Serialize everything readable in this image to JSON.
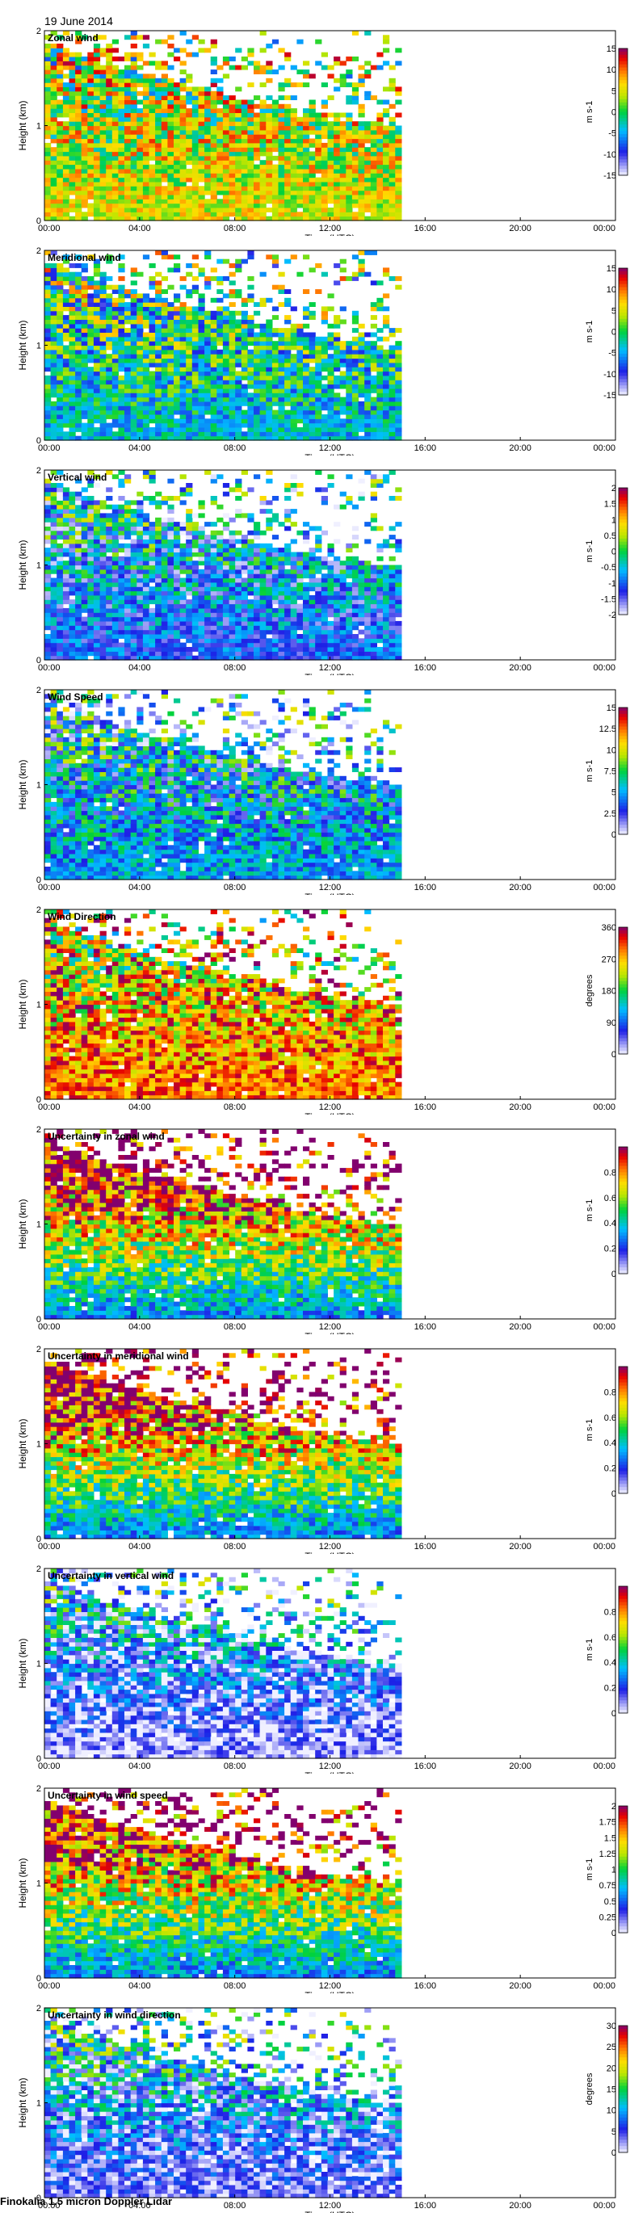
{
  "header": {
    "date": "19 June 2014"
  },
  "footer": {
    "instrument": "Finokalia 1.5 micron Doppler Lidar"
  },
  "chart_data": [
    {
      "type": "heatmap",
      "title": "Zonal wind",
      "xlabel": "Time (UTC)",
      "ylabel": "Height (km)",
      "cbar_label": "m s-1",
      "clim": [
        -15,
        15
      ],
      "cbar_ticks": [
        "15",
        "10",
        "5",
        "0",
        "-5",
        "-10",
        "-15"
      ],
      "xticks": [
        "00:00",
        "04:00",
        "08:00",
        "12:00",
        "16:00",
        "20:00",
        "00:00"
      ],
      "xlim": [
        0,
        24
      ],
      "yticks": [
        "0",
        "1",
        "2"
      ],
      "ylim": [
        0,
        2
      ],
      "data_end_hour": 15,
      "low_level_value": 5,
      "high_level_value": 3,
      "colormap": "jet-like"
    },
    {
      "type": "heatmap",
      "title": "Meridional wind",
      "xlabel": "Time (UTC)",
      "ylabel": "Height (km)",
      "cbar_label": "m s-1",
      "clim": [
        -15,
        15
      ],
      "cbar_ticks": [
        "15",
        "10",
        "5",
        "0",
        "-5",
        "-10",
        "-15"
      ],
      "xticks": [
        "00:00",
        "04:00",
        "08:00",
        "12:00",
        "16:00",
        "20:00",
        "00:00"
      ],
      "xlim": [
        0,
        24
      ],
      "yticks": [
        "0",
        "1",
        "2"
      ],
      "ylim": [
        0,
        2
      ],
      "data_end_hour": 15,
      "low_level_value": -4,
      "high_level_value": 0,
      "colormap": "jet-like"
    },
    {
      "type": "heatmap",
      "title": "Vertical wind",
      "xlabel": "Time (UTC)",
      "ylabel": "Height (km)",
      "cbar_label": "m s-1",
      "clim": [
        -2,
        2
      ],
      "cbar_ticks": [
        "2",
        "1.5",
        "1",
        "0.5",
        "0",
        "-0.5",
        "-1",
        "-1.5",
        "-2"
      ],
      "xticks": [
        "00:00",
        "04:00",
        "08:00",
        "12:00",
        "16:00",
        "20:00",
        "00:00"
      ],
      "xlim": [
        0,
        24
      ],
      "yticks": [
        "0",
        "1",
        "2"
      ],
      "ylim": [
        0,
        2
      ],
      "data_end_hour": 15,
      "low_level_value": -1.1,
      "high_level_value": -0.6,
      "colormap": "jet-like"
    },
    {
      "type": "heatmap",
      "title": "Wind Speed",
      "xlabel": "Time (UTC)",
      "ylabel": "Height (km)",
      "cbar_label": "m s-1",
      "clim": [
        0,
        15
      ],
      "cbar_ticks": [
        "15",
        "12.5",
        "10",
        "7.5",
        "5",
        "2.5",
        "0"
      ],
      "xticks": [
        "00:00",
        "04:00",
        "08:00",
        "12:00",
        "16:00",
        "20:00",
        "00:00"
      ],
      "xlim": [
        0,
        24
      ],
      "yticks": [
        "0",
        "1",
        "2"
      ],
      "ylim": [
        0,
        2
      ],
      "data_end_hour": 15,
      "low_level_value": 5,
      "high_level_value": 5,
      "colormap": "jet-like"
    },
    {
      "type": "heatmap",
      "title": "Wind Direction",
      "xlabel": "Time (UTC)",
      "ylabel": "Height (km)",
      "cbar_label": "degrees",
      "clim": [
        0,
        360
      ],
      "cbar_ticks": [
        "360",
        "270",
        "180",
        "90",
        "0"
      ],
      "xticks": [
        "00:00",
        "04:00",
        "08:00",
        "12:00",
        "16:00",
        "20:00",
        "00:00"
      ],
      "xlim": [
        0,
        24
      ],
      "yticks": [
        "0",
        "1",
        "2"
      ],
      "ylim": [
        0,
        2
      ],
      "data_end_hour": 15,
      "low_level_value": 300,
      "high_level_value": 240,
      "colormap": "jet-like"
    },
    {
      "type": "heatmap",
      "title": "Uncertainty in zonal wind",
      "xlabel": "Time (UTC)",
      "ylabel": "Height (km)",
      "cbar_label": "m s-1",
      "clim": [
        0,
        1
      ],
      "cbar_ticks": [
        "0.8",
        "0.6",
        "0.4",
        "0.2",
        "0"
      ],
      "xticks": [
        "00:00",
        "04:00",
        "08:00",
        "12:00",
        "16:00",
        "20:00",
        "00:00"
      ],
      "xlim": [
        0,
        24
      ],
      "yticks": [
        "0",
        "1",
        "2"
      ],
      "ylim": [
        0,
        2
      ],
      "data_end_hour": 15,
      "low_level_value": 0.3,
      "high_level_value": 1,
      "colormap": "jet-like"
    },
    {
      "type": "heatmap",
      "title": "Uncertainty in meridional wind",
      "xlabel": "Time (UTC)",
      "ylabel": "Height (km)",
      "cbar_label": "m s-1",
      "clim": [
        0,
        1
      ],
      "cbar_ticks": [
        "0.8",
        "0.6",
        "0.4",
        "0.2",
        "0"
      ],
      "xticks": [
        "00:00",
        "04:00",
        "08:00",
        "12:00",
        "16:00",
        "20:00",
        "00:00"
      ],
      "xlim": [
        0,
        24
      ],
      "yticks": [
        "0",
        "1",
        "2"
      ],
      "ylim": [
        0,
        2
      ],
      "data_end_hour": 15,
      "low_level_value": 0.3,
      "high_level_value": 1,
      "colormap": "jet-like"
    },
    {
      "type": "heatmap",
      "title": "Uncertainty in vertical wind",
      "xlabel": "Time (UTC)",
      "ylabel": "Height (km)",
      "cbar_label": "m s-1",
      "clim": [
        0,
        1
      ],
      "cbar_ticks": [
        "0.8",
        "0.6",
        "0.4",
        "0.2",
        "0"
      ],
      "xticks": [
        "00:00",
        "04:00",
        "08:00",
        "12:00",
        "16:00",
        "20:00",
        "00:00"
      ],
      "xlim": [
        0,
        24
      ],
      "yticks": [
        "0",
        "1",
        "2"
      ],
      "ylim": [
        0,
        2
      ],
      "data_end_hour": 15,
      "low_level_value": 0.05,
      "high_level_value": 0.3,
      "colormap": "jet-like"
    },
    {
      "type": "heatmap",
      "title": "Uncertainty in wind speed",
      "xlabel": "Time (UTC)",
      "ylabel": "Height (km)",
      "cbar_label": "m s-1",
      "clim": [
        0,
        2
      ],
      "cbar_ticks": [
        "2",
        "1.75",
        "1.5",
        "1.25",
        "1",
        "0.75",
        "0.5",
        "0.25",
        "0"
      ],
      "xticks": [
        "00:00",
        "04:00",
        "08:00",
        "12:00",
        "16:00",
        "20:00",
        "00:00"
      ],
      "xlim": [
        0,
        24
      ],
      "yticks": [
        "0",
        "1",
        "2"
      ],
      "ylim": [
        0,
        2
      ],
      "data_end_hour": 15,
      "low_level_value": 0.6,
      "high_level_value": 1.9,
      "colormap": "jet-like"
    },
    {
      "type": "heatmap",
      "title": "Uncertainty in wind direction",
      "xlabel": "Time (UTC)",
      "ylabel": "Height (km)",
      "cbar_label": "degrees",
      "clim": [
        0,
        30
      ],
      "cbar_ticks": [
        "30",
        "25",
        "20",
        "15",
        "10",
        "5",
        "0"
      ],
      "xticks": [
        "00:00",
        "04:00",
        "08:00",
        "12:00",
        "16:00",
        "20:00",
        "00:00"
      ],
      "xlim": [
        0,
        24
      ],
      "yticks": [
        "0",
        "1",
        "2"
      ],
      "ylim": [
        0,
        2
      ],
      "data_end_hour": 15,
      "low_level_value": 3,
      "high_level_value": 10,
      "colormap": "jet-like"
    }
  ]
}
